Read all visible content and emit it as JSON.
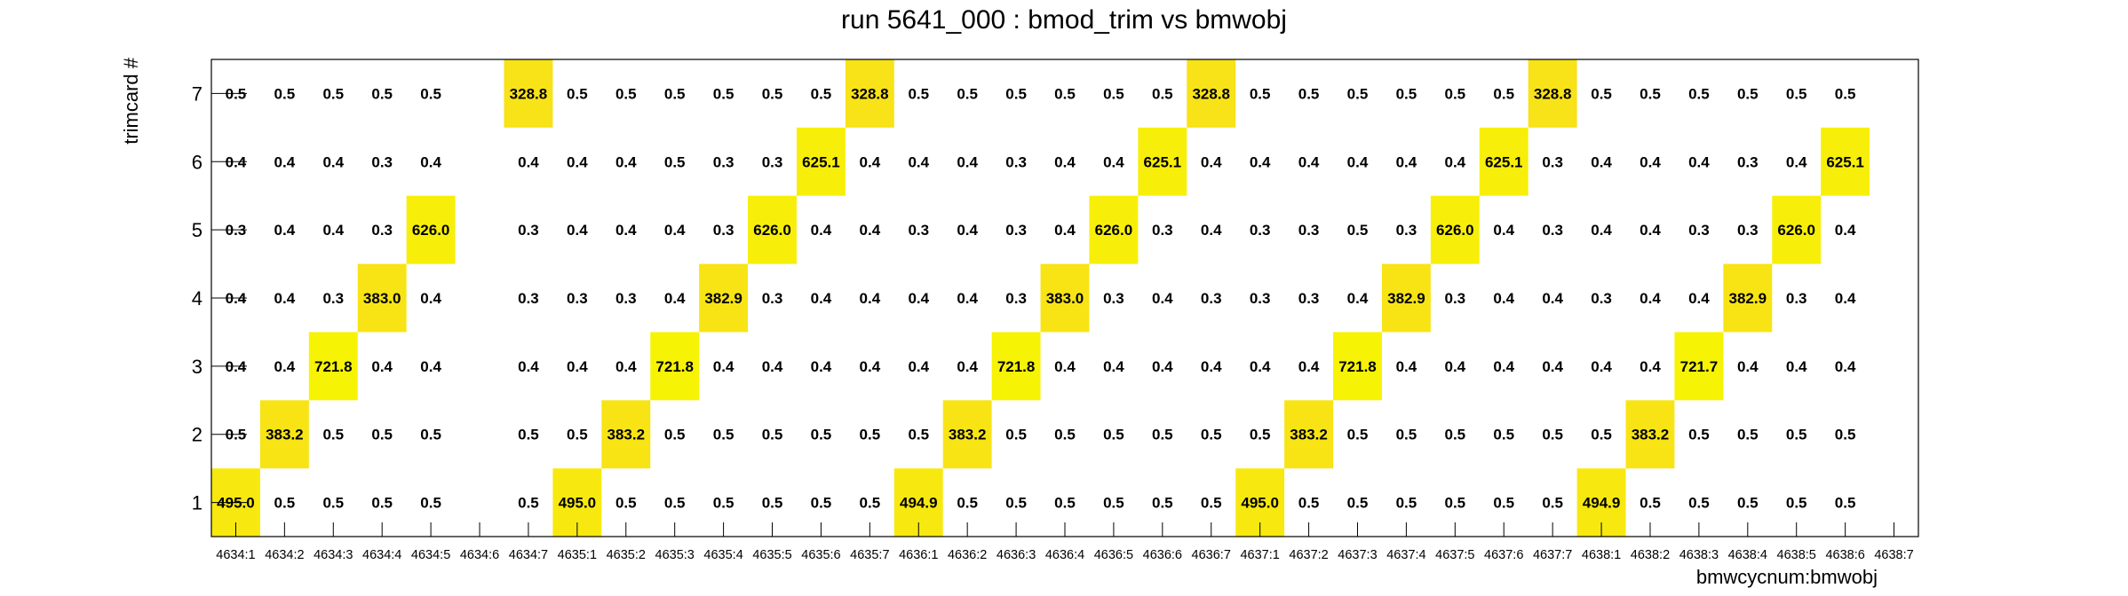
{
  "chart_data": {
    "type": "heatmap",
    "title": "run 5641_000 : bmod_trim vs bmwobj",
    "xlabel": "bmwcycnum:bmwobj",
    "ylabel": "trimcard #",
    "x_categories": [
      "4634:1",
      "4634:2",
      "4634:3",
      "4634:4",
      "4634:5",
      "4634:6",
      "4634:7",
      "4635:1",
      "4635:2",
      "4635:3",
      "4635:4",
      "4635:5",
      "4635:6",
      "4635:7",
      "4636:1",
      "4636:2",
      "4636:3",
      "4636:4",
      "4636:5",
      "4636:6",
      "4636:7",
      "4637:1",
      "4637:2",
      "4637:3",
      "4637:4",
      "4637:5",
      "4637:6",
      "4637:7",
      "4638:1",
      "4638:2",
      "4638:3",
      "4638:4",
      "4638:5",
      "4638:6",
      "4638:7"
    ],
    "y_categories": [
      "1",
      "2",
      "3",
      "4",
      "5",
      "6",
      "7"
    ],
    "values": [
      [
        "495.0",
        "0.5",
        "0.5",
        "0.5",
        "0.5",
        "",
        "0.5",
        "495.0",
        "0.5",
        "0.5",
        "0.5",
        "0.5",
        "0.5",
        "0.5",
        "494.9",
        "0.5",
        "0.5",
        "0.5",
        "0.5",
        "0.5",
        "0.5",
        "495.0",
        "0.5",
        "0.5",
        "0.5",
        "0.5",
        "0.5",
        "0.5",
        "494.9",
        "0.5",
        "0.5",
        "0.5",
        "0.5",
        "0.5",
        ""
      ],
      [
        "0.5",
        "383.2",
        "0.5",
        "0.5",
        "0.5",
        "",
        "0.5",
        "0.5",
        "383.2",
        "0.5",
        "0.5",
        "0.5",
        "0.5",
        "0.5",
        "0.5",
        "383.2",
        "0.5",
        "0.5",
        "0.5",
        "0.5",
        "0.5",
        "0.5",
        "383.2",
        "0.5",
        "0.5",
        "0.5",
        "0.5",
        "0.5",
        "0.5",
        "383.2",
        "0.5",
        "0.5",
        "0.5",
        "0.5",
        ""
      ],
      [
        "0.4",
        "0.4",
        "721.8",
        "0.4",
        "0.4",
        "",
        "0.4",
        "0.4",
        "0.4",
        "721.8",
        "0.4",
        "0.4",
        "0.4",
        "0.4",
        "0.4",
        "0.4",
        "721.8",
        "0.4",
        "0.4",
        "0.4",
        "0.4",
        "0.4",
        "0.4",
        "721.8",
        "0.4",
        "0.4",
        "0.4",
        "0.4",
        "0.4",
        "0.4",
        "721.7",
        "0.4",
        "0.4",
        "0.4",
        ""
      ],
      [
        "0.4",
        "0.4",
        "0.3",
        "383.0",
        "0.4",
        "",
        "0.3",
        "0.3",
        "0.3",
        "0.4",
        "382.9",
        "0.3",
        "0.4",
        "0.4",
        "0.4",
        "0.4",
        "0.3",
        "383.0",
        "0.3",
        "0.4",
        "0.3",
        "0.3",
        "0.3",
        "0.4",
        "382.9",
        "0.3",
        "0.4",
        "0.4",
        "0.3",
        "0.4",
        "0.4",
        "382.9",
        "0.3",
        "0.4",
        ""
      ],
      [
        "0.3",
        "0.4",
        "0.4",
        "0.3",
        "626.0",
        "",
        "0.3",
        "0.4",
        "0.4",
        "0.4",
        "0.3",
        "626.0",
        "0.4",
        "0.4",
        "0.3",
        "0.4",
        "0.3",
        "0.4",
        "626.0",
        "0.3",
        "0.4",
        "0.3",
        "0.3",
        "0.5",
        "0.3",
        "626.0",
        "0.4",
        "0.3",
        "0.4",
        "0.4",
        "0.3",
        "0.3",
        "626.0",
        "0.4",
        ""
      ],
      [
        "0.4",
        "0.4",
        "0.4",
        "0.3",
        "0.4",
        "",
        "0.4",
        "0.4",
        "0.4",
        "0.5",
        "0.3",
        "0.3",
        "625.1",
        "0.4",
        "0.4",
        "0.4",
        "0.3",
        "0.4",
        "0.4",
        "625.1",
        "0.4",
        "0.4",
        "0.4",
        "0.4",
        "0.4",
        "0.4",
        "625.1",
        "0.3",
        "0.4",
        "0.4",
        "0.4",
        "0.3",
        "0.4",
        "625.1",
        ""
      ],
      [
        "0.5",
        "0.5",
        "0.5",
        "0.5",
        "0.5",
        "",
        "328.8",
        "0.5",
        "0.5",
        "0.5",
        "0.5",
        "0.5",
        "0.5",
        "328.8",
        "0.5",
        "0.5",
        "0.5",
        "0.5",
        "0.5",
        "0.5",
        "328.8",
        "0.5",
        "0.5",
        "0.5",
        "0.5",
        "0.5",
        "0.5",
        "328.8",
        "0.5",
        "0.5",
        "0.5",
        "0.5",
        "0.5",
        "0.5",
        ""
      ]
    ],
    "color_scale": {
      "low": "#f7f600",
      "high": "#f8d428",
      "min": 0,
      "max": 800
    },
    "grid": false,
    "legend": "none"
  }
}
